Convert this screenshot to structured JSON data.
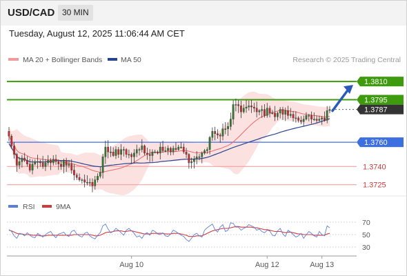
{
  "header": {
    "symbol": "USD/CAD",
    "timeframe": "30 MIN",
    "datetime": "Tuesday, August 12, 2025 11:06:44 AM CET"
  },
  "legend": {
    "ma20": "MA 20 + Bollinger Bands",
    "ma50": "MA 50",
    "credit": "Research © 2025 Trading Central"
  },
  "rsi_legend": {
    "rsi": "RSI",
    "ma9": "9MA"
  },
  "colors": {
    "green": "#3e9b0e",
    "blue": "#3d6fe0",
    "red_level": "#f4a0a0",
    "current": "#333333",
    "ma20": "#e86a6a",
    "ma50": "#27458f",
    "bband_fill": "#fcdede",
    "rsi": "#5b7fd6",
    "rsi_ma": "#d23a3a",
    "arrow": "#2a5ab8"
  },
  "chart_data": [
    {
      "type": "candlestick",
      "title": "USD/CAD",
      "timeframe": "30 MIN",
      "ylim": [
        1.3718,
        1.3822
      ],
      "levels": [
        {
          "value": 1.381,
          "label": "1.3810",
          "kind": "resistance",
          "color": "#3e9b0e"
        },
        {
          "value": 1.3795,
          "label": "1.3795",
          "kind": "resistance",
          "color": "#3e9b0e"
        },
        {
          "value": 1.3787,
          "label": "1.3787",
          "kind": "current",
          "color": "#333333"
        },
        {
          "value": 1.376,
          "label": "1.3760",
          "kind": "pivot",
          "color": "#3d6fe0"
        },
        {
          "value": 1.374,
          "label": "1.3740",
          "kind": "support",
          "color": "#f4a0a0"
        },
        {
          "value": 1.3725,
          "label": "1.3725",
          "kind": "support",
          "color": "#f4a0a0"
        }
      ],
      "x_ticks": [
        {
          "label": "Aug 10",
          "index": 47
        },
        {
          "label": "Aug 12",
          "index": 99
        },
        {
          "label": "Aug 13",
          "index": 120
        }
      ],
      "series": [
        {
          "name": "MA 20 + Bollinger Bands"
        },
        {
          "name": "MA 50"
        }
      ],
      "close": [
        1.3765,
        1.3757,
        1.375,
        1.3741,
        1.3744,
        1.3747,
        1.3745,
        1.3742,
        1.3737,
        1.3742,
        1.3744,
        1.3744,
        1.3743,
        1.374,
        1.3743,
        1.3745,
        1.3743,
        1.3746,
        1.3744,
        1.3742,
        1.374,
        1.3745,
        1.3741,
        1.3742,
        1.3737,
        1.3733,
        1.3731,
        1.3729,
        1.3729,
        1.3727,
        1.3727,
        1.3727,
        1.3724,
        1.3729,
        1.3732,
        1.3735,
        1.3748,
        1.3756,
        1.3752,
        1.3752,
        1.3749,
        1.3754,
        1.375,
        1.3754,
        1.3754,
        1.375,
        1.375,
        1.3748,
        1.3751,
        1.3754,
        1.3754,
        1.3757,
        1.3751,
        1.375,
        1.3749,
        1.3752,
        1.3752,
        1.3751,
        1.3756,
        1.3753,
        1.3753,
        1.3755,
        1.3752,
        1.3755,
        1.3754,
        1.3756,
        1.3756,
        1.3752,
        1.375,
        1.3743,
        1.3744,
        1.3746,
        1.3748,
        1.3748,
        1.3751,
        1.3753,
        1.3754,
        1.3764,
        1.3769,
        1.3767,
        1.3766,
        1.3765,
        1.3771,
        1.3771,
        1.3773,
        1.3779,
        1.3791,
        1.3791,
        1.379,
        1.3785,
        1.3788,
        1.3789,
        1.379,
        1.3789,
        1.3788,
        1.3785,
        1.3786,
        1.3787,
        1.3782,
        1.3788,
        1.3784,
        1.3784,
        1.3781,
        1.3784,
        1.3787,
        1.3783,
        1.3786,
        1.3782,
        1.3783,
        1.378,
        1.378,
        1.3778,
        1.3777,
        1.3779,
        1.3782,
        1.3782,
        1.3779,
        1.3779,
        1.3778,
        1.3779,
        1.378,
        1.3778,
        1.3786,
        1.3787
      ],
      "rsi_panel": {
        "ylim": [
          20,
          80
        ],
        "ticks": [
          70,
          50,
          30
        ],
        "rsi": [
          58,
          55,
          48,
          44,
          52,
          51,
          48,
          53,
          49,
          46,
          45,
          52,
          49,
          46,
          50,
          53,
          55,
          49,
          45,
          51,
          52,
          54,
          49,
          47,
          55,
          57,
          51,
          48,
          46,
          52,
          54,
          48,
          45,
          43,
          49,
          53,
          64,
          67,
          59,
          53,
          55,
          60,
          57,
          53,
          49,
          57,
          60,
          56,
          52,
          46,
          48,
          44,
          51,
          53,
          49,
          57,
          55,
          51,
          50,
          53,
          48,
          47,
          51,
          57,
          55,
          52,
          49,
          47,
          42,
          39,
          44,
          50,
          52,
          48,
          46,
          57,
          61,
          64,
          67,
          58,
          54,
          62,
          66,
          55,
          57,
          69,
          68,
          62,
          62,
          57,
          60,
          62,
          66,
          64,
          62,
          57,
          59,
          55,
          53,
          57,
          56,
          49,
          48,
          56,
          60,
          51,
          47,
          57,
          54,
          50,
          46,
          48,
          52,
          44,
          50,
          55,
          52,
          48,
          46,
          55,
          50,
          48,
          64,
          61
        ],
        "rsi_ma": [
          57,
          56,
          54,
          52,
          51,
          51,
          50,
          50,
          50,
          49,
          49,
          49,
          48,
          48,
          48,
          49,
          49,
          49,
          49,
          49,
          49,
          49,
          49,
          49,
          49,
          50,
          50,
          50,
          50,
          50,
          50,
          50,
          49,
          48,
          48,
          49,
          51,
          53,
          54,
          54,
          55,
          56,
          56,
          56,
          55,
          55,
          56,
          56,
          55,
          54,
          53,
          52,
          51,
          51,
          51,
          52,
          52,
          52,
          52,
          52,
          51,
          51,
          51,
          52,
          52,
          52,
          51,
          50,
          49,
          47,
          47,
          47,
          48,
          48,
          48,
          50,
          52,
          54,
          56,
          57,
          58,
          59,
          60,
          60,
          60,
          61,
          62,
          63,
          63,
          62,
          62,
          62,
          62,
          62,
          61,
          61,
          60,
          59,
          58,
          58,
          57,
          56,
          55,
          55,
          55,
          54,
          53,
          54,
          54,
          53,
          52,
          51,
          51,
          50,
          50,
          50,
          50,
          49,
          49,
          49,
          49,
          49,
          51,
          52
        ]
      }
    }
  ]
}
